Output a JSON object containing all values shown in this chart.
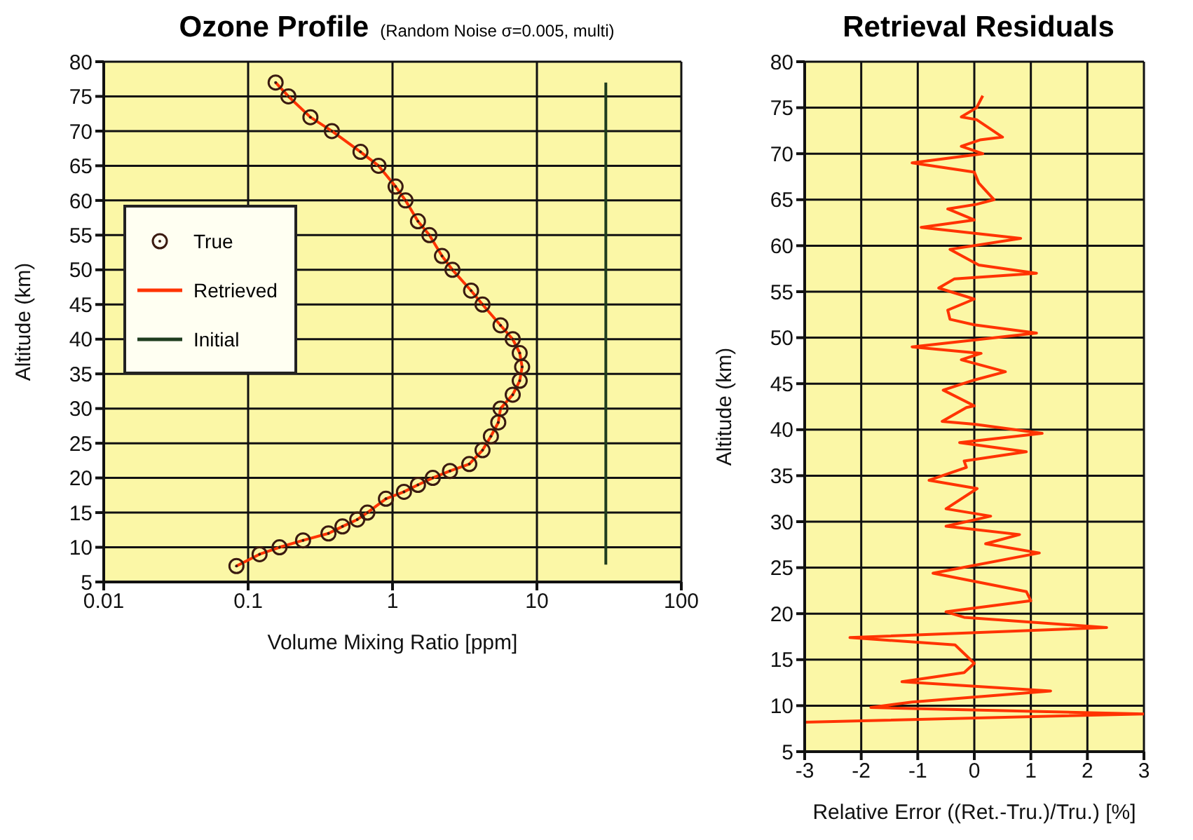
{
  "chart_data": [
    {
      "type": "line",
      "title": "Ozone Profile",
      "subtitle": "(Random Noise σ=0.005, multi)",
      "xlabel": "Volume Mixing Ratio  [ppm]",
      "ylabel": "Altitude (km)",
      "log": "x",
      "xlim": [
        0.01,
        100
      ],
      "xticks": [
        0.01,
        0.1,
        1,
        10,
        100
      ],
      "ylim": [
        5,
        80
      ],
      "yticks": [
        5,
        10,
        15,
        20,
        25,
        30,
        35,
        40,
        45,
        50,
        55,
        60,
        65,
        70,
        75,
        80
      ],
      "grid": true,
      "legend": "left",
      "series": [
        {
          "name": "True",
          "type": "scatter",
          "marker": "circle",
          "color": "#3a1a10",
          "x": [
            0.083,
            0.12,
            0.165,
            0.24,
            0.36,
            0.45,
            0.57,
            0.67,
            0.9,
            1.2,
            1.5,
            1.9,
            2.5,
            3.4,
            4.2,
            4.8,
            5.4,
            5.6,
            6.8,
            7.6,
            7.9,
            7.6,
            6.8,
            5.6,
            4.2,
            3.5,
            2.6,
            2.2,
            1.8,
            1.5,
            1.23,
            1.05,
            0.8,
            0.6,
            0.38,
            0.27,
            0.19,
            0.155
          ],
          "values": [
            7.3,
            9,
            10,
            11,
            12,
            13,
            14,
            15,
            17,
            18,
            19,
            20,
            21,
            22,
            24,
            26,
            28,
            30,
            32,
            34,
            36,
            38,
            40,
            42,
            45,
            47,
            50,
            52,
            55,
            57,
            60,
            62,
            65,
            67,
            70,
            72,
            75,
            77
          ]
        },
        {
          "name": "Retrieved",
          "type": "line",
          "color": "#ff3300",
          "x": [
            0.083,
            0.12,
            0.165,
            0.24,
            0.36,
            0.45,
            0.57,
            0.67,
            0.9,
            1.2,
            1.5,
            1.9,
            2.5,
            3.4,
            4.2,
            4.8,
            5.4,
            5.6,
            6.8,
            7.6,
            7.9,
            7.6,
            6.8,
            5.6,
            4.2,
            3.5,
            2.6,
            2.2,
            1.8,
            1.5,
            1.23,
            1.05,
            0.8,
            0.6,
            0.38,
            0.27,
            0.19,
            0.155
          ],
          "values": [
            7.3,
            9,
            10,
            11,
            12,
            13,
            14,
            15,
            17,
            18,
            19,
            20,
            21,
            22,
            24,
            26,
            28,
            30,
            32,
            34,
            36,
            38,
            40,
            42,
            45,
            47,
            50,
            52,
            55,
            57,
            60,
            62,
            65,
            67,
            70,
            72,
            75,
            77
          ]
        },
        {
          "name": "Initial",
          "type": "line",
          "color": "#1f3d1f",
          "x": [
            30,
            30
          ],
          "values": [
            7.5,
            77
          ]
        }
      ]
    },
    {
      "type": "line",
      "title": "Retrieval Residuals",
      "xlabel": "Relative Error  ((Ret.-Tru.)/Tru.) [%]",
      "ylabel": "Altitude (km)",
      "xlim": [
        -3,
        3
      ],
      "xticks": [
        -3,
        -2,
        -1,
        0,
        1,
        2,
        3
      ],
      "ylim": [
        5,
        80
      ],
      "yticks": [
        5,
        10,
        15,
        20,
        25,
        30,
        35,
        40,
        45,
        50,
        55,
        60,
        65,
        70,
        75,
        80
      ],
      "grid": true,
      "series": [
        {
          "type": "line",
          "color": "#ff3300",
          "x": [
            -3,
            3,
            -1.83,
            -1.1,
            1.35,
            -1.28,
            -0.18,
            0,
            -0.34,
            -2.2,
            2.34,
            -0.18,
            -0.5,
            1.0,
            0.92,
            -0.73,
            1.15,
            0.2,
            0.8,
            -0.5,
            0.29,
            -0.5,
            0.05,
            -0.8,
            -0.14,
            -0.18,
            0.92,
            -0.26,
            1.2,
            0,
            -0.57,
            -0.14,
            0,
            -0.55,
            0,
            0.55,
            -0.23,
            0.12,
            -1.1,
            1.1,
            0,
            -0.43,
            -0.47,
            0,
            -0.63,
            -0.35,
            1.1,
            0.08,
            -0.43,
            0.82,
            -0.94,
            0,
            -0.47,
            0.04,
            0.35,
            0.08,
            0,
            -1.1,
            0.15,
            -0.23,
            0.1,
            0.5,
            0.04,
            -0.23,
            0.04,
            0.15
          ],
          "values": [
            8.2,
            9.1,
            9.8,
            10.4,
            11.6,
            12.6,
            13.6,
            14.6,
            16.6,
            17.4,
            18.5,
            19.6,
            20.2,
            21.4,
            22.4,
            24.4,
            26.6,
            27.6,
            28.6,
            29.5,
            30.6,
            31.4,
            33.6,
            34.5,
            35.9,
            36.6,
            37.6,
            38.6,
            39.6,
            40.6,
            40.9,
            42.4,
            42.6,
            44.3,
            45.4,
            46.3,
            47.6,
            48.3,
            49,
            50.5,
            51.4,
            52,
            53,
            54.2,
            55.4,
            56.4,
            57,
            57.9,
            59.6,
            60.8,
            62,
            62.8,
            64,
            64.5,
            65,
            66.8,
            68,
            69,
            70,
            70.8,
            71.5,
            71.8,
            73.7,
            74,
            75,
            76.3
          ]
        }
      ]
    }
  ]
}
